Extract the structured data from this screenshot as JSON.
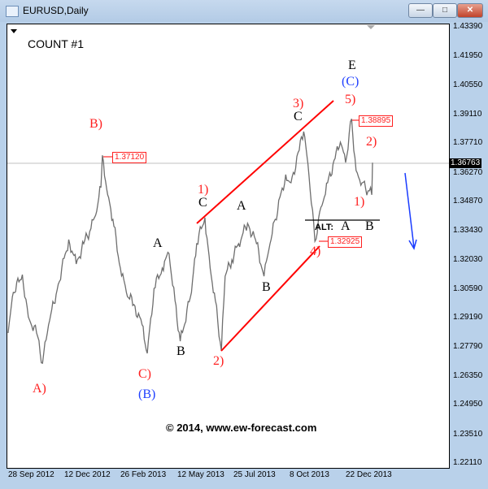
{
  "window": {
    "title": "EURUSD,Daily",
    "buttons": [
      "minimize",
      "restore",
      "close"
    ]
  },
  "annotations": {
    "count": "COUNT #1",
    "copyright": "© 2014, www.ew-forecast.com",
    "wave_B_paren": "B)",
    "wave_A_paren": "A)",
    "wave_C_paren": "C)",
    "wave_B_blue": "(B)",
    "a1": "A",
    "b1": "B",
    "w1": "1)",
    "c1": "C",
    "w2": "2)",
    "a2": "A",
    "b2": "B",
    "w3": "3)",
    "c2": "C",
    "E": "E",
    "wave_C_blue": "(C)",
    "w5": "5)",
    "w2b": "2)",
    "w1b": "1)",
    "alt": "ALT:",
    "alt_a": "A",
    "alt_b": "B",
    "w4": "4)",
    "price_high1": "1.37120",
    "price_high2": "1.38895",
    "price_low": "1.32925"
  },
  "chart_data": {
    "type": "line",
    "symbol": "EURUSD",
    "timeframe": "Daily",
    "ylim": [
      1.2211,
      1.4339
    ],
    "current_price": "1.36763",
    "y_ticks": [
      "1.43390",
      "1.41950",
      "1.40550",
      "1.39110",
      "1.37710",
      "1.36270",
      "1.34870",
      "1.33430",
      "1.32030",
      "1.30590",
      "1.29190",
      "1.27790",
      "1.26350",
      "1.24950",
      "1.23510",
      "1.22110"
    ],
    "x_ticks": [
      "28 Sep 2012",
      "12 Dec 2012",
      "26 Feb 2013",
      "12 May 2013",
      "25 Jul 2013",
      "8 Oct 2013",
      "22 Dec 2013"
    ],
    "series": [
      {
        "dates": [
          "2012-09-28",
          "2012-10-05",
          "2012-10-17",
          "2012-10-25",
          "2012-11-05",
          "2012-11-13",
          "2012-11-21",
          "2012-12-04",
          "2012-12-18",
          "2012-12-28",
          "2013-01-07",
          "2013-01-15",
          "2013-01-23",
          "2013-01-30",
          "2013-02-01",
          "2013-02-08",
          "2013-02-15",
          "2013-02-25",
          "2013-03-05",
          "2013-03-15",
          "2013-03-26",
          "2013-04-02",
          "2013-04-11",
          "2013-04-22",
          "2013-05-01",
          "2013-05-09",
          "2013-05-16",
          "2013-05-31",
          "2013-06-07",
          "2013-06-18",
          "2013-06-25",
          "2013-07-02",
          "2013-07-10",
          "2013-07-15",
          "2013-07-24",
          "2013-08-02",
          "2013-08-14",
          "2013-08-26",
          "2013-09-05",
          "2013-09-13",
          "2013-09-20",
          "2013-10-04",
          "2013-10-11",
          "2013-10-22",
          "2013-10-28",
          "2013-11-04",
          "2013-11-12",
          "2013-11-20",
          "2013-11-29",
          "2013-12-09",
          "2013-12-16",
          "2013-12-23",
          "2013-12-31",
          "2014-01-06",
          "2014-01-14",
          "2014-01-22",
          "2014-01-27",
          "2014-01-28"
        ],
        "values": [
          1.2845,
          1.3043,
          1.313,
          1.2924,
          1.2845,
          1.2698,
          1.2885,
          1.3083,
          1.3301,
          1.3182,
          1.3281,
          1.334,
          1.342,
          1.3558,
          1.3712,
          1.3519,
          1.34,
          1.3162,
          1.3043,
          1.2984,
          1.2885,
          1.2746,
          1.3063,
          1.3162,
          1.3233,
          1.3003,
          1.2805,
          1.3043,
          1.3281,
          1.3408,
          1.3162,
          1.3003,
          1.2758,
          1.3122,
          1.3202,
          1.3281,
          1.338,
          1.3281,
          1.3122,
          1.3281,
          1.34,
          1.3618,
          1.3578,
          1.3737,
          1.3828,
          1.3618,
          1.32925,
          1.3459,
          1.3578,
          1.3697,
          1.3776,
          1.3677,
          1.38895,
          1.3638,
          1.3578,
          1.3539,
          1.3519,
          1.36763
        ]
      }
    ],
    "colors": {
      "price": "#6e6e6e",
      "trendlines": "#ff0000",
      "forecast_arrow": "#1a3cff",
      "current_line": "#c0c0c0"
    }
  }
}
